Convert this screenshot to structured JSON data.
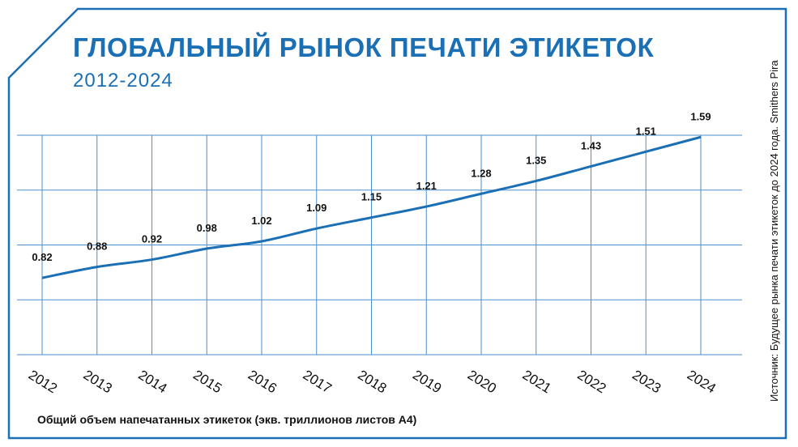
{
  "header": {
    "title": "ГЛОБАЛЬНЫЙ РЫНОК ПЕЧАТИ ЭТИКЕТОК",
    "subtitle": "2012-2024"
  },
  "footer": {
    "axis_caption": "Общий объем напечатанных этикеток (экв. триллионов листов А4)"
  },
  "source_note": "Источник: Будущее рынка печати этикеток до 2024 года. Smithers Pira",
  "colors": {
    "accent": "#1b6fb4",
    "grid": "#4a8fcf"
  },
  "chart_data": {
    "type": "line",
    "title": "ГЛОБАЛЬНЫЙ РЫНОК ПЕЧАТИ ЭТИКЕТОК",
    "subtitle": "2012-2024",
    "xlabel": "Общий объем напечатанных этикеток (экв. триллионов листов А4)",
    "ylabel": "",
    "categories": [
      "2012",
      "2013",
      "2014",
      "2015",
      "2016",
      "2017",
      "2018",
      "2019",
      "2020",
      "2021",
      "2022",
      "2023",
      "2024"
    ],
    "series": [
      {
        "values": [
          0.82,
          0.88,
          0.92,
          0.98,
          1.02,
          1.09,
          1.15,
          1.21,
          1.28,
          1.35,
          1.43,
          1.51,
          1.59
        ]
      }
    ],
    "data_labels": [
      "0.82",
      "0.88",
      "0.92",
      "0.98",
      "1.02",
      "1.09",
      "1.15",
      "1.21",
      "1.28",
      "1.35",
      "1.43",
      "1.51",
      "1.59"
    ],
    "ylim": [
      0.4,
      1.6
    ],
    "grid": true,
    "legend": "none"
  }
}
